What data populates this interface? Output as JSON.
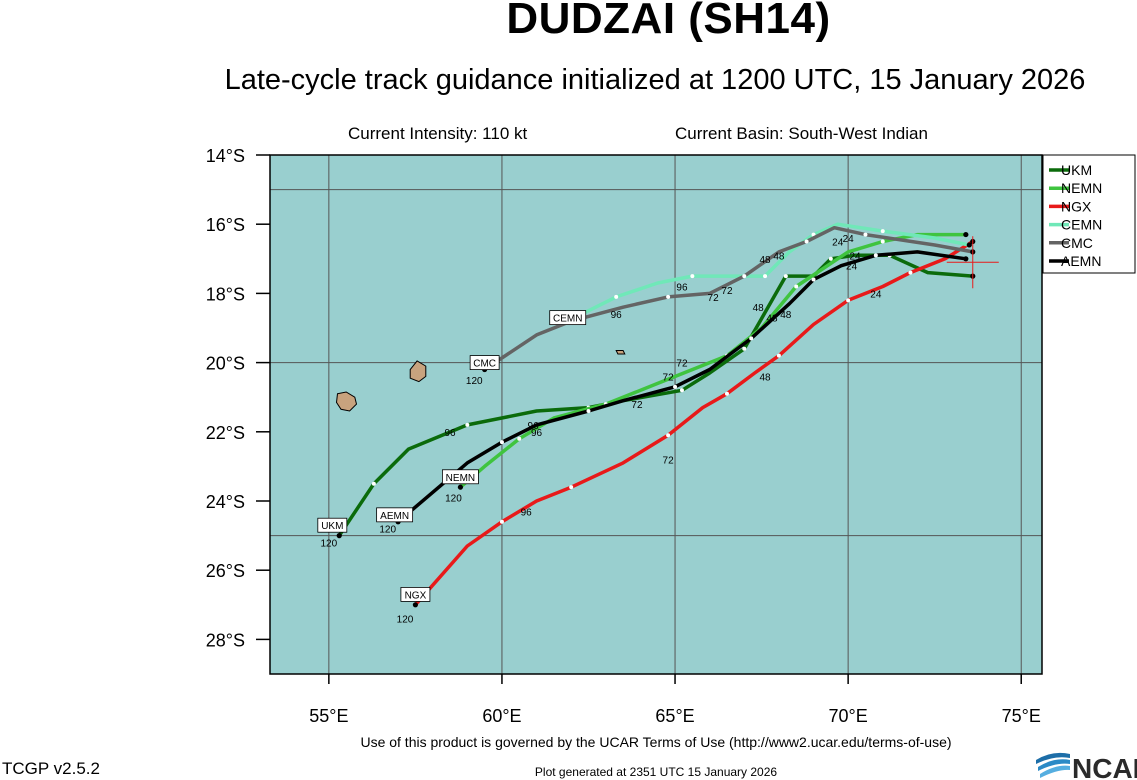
{
  "header": {
    "title": "DUDZAI (SH14)",
    "subtitle": "Late-cycle track guidance initialized at 1200 UTC, 15 January 2026",
    "intensity": "Current Intensity: 110 kt",
    "basin": "Current Basin: South-West Indian"
  },
  "footer": {
    "terms": "Use of this product is governed by the UCAR Terms of Use (http://www2.ucar.edu/terms-of-use)",
    "version": "TCGP v2.5.2",
    "generated": "Plot generated at 2351 UTC   15 January 2026",
    "logo_text": "NCAR"
  },
  "colors": {
    "ocean": "#99cfcf",
    "land": "#c8a37e",
    "UKM": "#0b6b0b",
    "NEMN": "#3fc43f",
    "NGX": "#e81a1a",
    "CEMN": "#70e8b8",
    "CMC": "#646464",
    "AEMN": "#000000"
  },
  "chart_data": {
    "type": "map-track",
    "lon_range": [
      53.3,
      75.6
    ],
    "lat_range": [
      -29,
      -14
    ],
    "x_ticks": [
      {
        "value": 55,
        "label": "55°E"
      },
      {
        "value": 60,
        "label": "60°E"
      },
      {
        "value": 65,
        "label": "65°E"
      },
      {
        "value": 70,
        "label": "70°E"
      },
      {
        "value": 75,
        "label": "75°E"
      }
    ],
    "y_ticks": [
      {
        "value": -14,
        "label": "14°S"
      },
      {
        "value": -16,
        "label": "16°S"
      },
      {
        "value": -18,
        "label": "18°S"
      },
      {
        "value": -20,
        "label": "20°S"
      },
      {
        "value": -22,
        "label": "22°S"
      },
      {
        "value": -24,
        "label": "24°S"
      },
      {
        "value": -26,
        "label": "26°S"
      },
      {
        "value": -28,
        "label": "28°S"
      }
    ],
    "grid_lon": [
      55,
      60,
      65,
      70,
      75
    ],
    "grid_lat": [
      -15,
      -20,
      -25
    ],
    "current_position": {
      "lon": 73.6,
      "lat": -17.1
    },
    "legend": [
      "UKM",
      "NEMN",
      "NGX",
      "CEMN",
      "CMC",
      "AEMN"
    ],
    "tracks": [
      {
        "name": "UKM",
        "points": [
          [
            73.6,
            -17.5
          ],
          [
            72.3,
            -17.4
          ],
          [
            71.2,
            -16.9
          ],
          [
            70.2,
            -16.9
          ],
          [
            69.5,
            -17.0
          ],
          [
            69.0,
            -17.5
          ],
          [
            68.2,
            -17.5
          ],
          [
            67.8,
            -18.2
          ],
          [
            67.0,
            -19.6
          ],
          [
            66.0,
            -20.3
          ],
          [
            65.2,
            -20.8
          ],
          [
            63.5,
            -21.1
          ],
          [
            62.5,
            -21.3
          ],
          [
            61.0,
            -21.4
          ],
          [
            59.0,
            -21.8
          ],
          [
            57.3,
            -22.5
          ],
          [
            56.3,
            -23.5
          ],
          [
            55.3,
            -25.0
          ]
        ],
        "labels": [
          {
            "text": "48",
            "lon": 68.2,
            "lat": -18.6
          },
          {
            "text": "72",
            "lon": 65.2,
            "lat": -20.0
          },
          {
            "text": "96",
            "lon": 58.5,
            "lat": -22.0
          },
          {
            "text": "120",
            "lon": 55.0,
            "lat": -25.2
          }
        ],
        "tag": {
          "text": "UKM",
          "lon": 55.1,
          "lat": -24.7
        }
      },
      {
        "name": "NEMN",
        "points": [
          [
            73.4,
            -16.3
          ],
          [
            72.0,
            -16.3
          ],
          [
            71.0,
            -16.5
          ],
          [
            70.0,
            -16.8
          ],
          [
            68.5,
            -17.8
          ],
          [
            67.5,
            -19.0
          ],
          [
            66.5,
            -19.8
          ],
          [
            64.5,
            -20.6
          ],
          [
            63.0,
            -21.2
          ],
          [
            61.5,
            -21.6
          ],
          [
            60.5,
            -22.2
          ],
          [
            59.5,
            -23.0
          ],
          [
            58.8,
            -23.6
          ]
        ],
        "labels": [
          {
            "text": "24",
            "lon": 70.2,
            "lat": -16.9
          },
          {
            "text": "48",
            "lon": 67.8,
            "lat": -18.7
          },
          {
            "text": "72",
            "lon": 64.8,
            "lat": -20.4
          },
          {
            "text": "96",
            "lon": 61.0,
            "lat": -22.0
          },
          {
            "text": "120",
            "lon": 58.6,
            "lat": -23.9
          }
        ],
        "tag": {
          "text": "NEMN",
          "lon": 58.8,
          "lat": -23.3
        }
      },
      {
        "name": "NGX",
        "points": [
          [
            73.6,
            -16.5
          ],
          [
            72.8,
            -17.0
          ],
          [
            71.8,
            -17.4
          ],
          [
            71.0,
            -17.8
          ],
          [
            70.0,
            -18.2
          ],
          [
            69.0,
            -18.9
          ],
          [
            68.0,
            -19.8
          ],
          [
            67.3,
            -20.3
          ],
          [
            66.5,
            -20.9
          ],
          [
            65.8,
            -21.3
          ],
          [
            64.8,
            -22.1
          ],
          [
            63.5,
            -22.9
          ],
          [
            62.0,
            -23.6
          ],
          [
            61.0,
            -24.0
          ],
          [
            60.0,
            -24.6
          ],
          [
            59.0,
            -25.3
          ],
          [
            57.5,
            -27.0
          ]
        ],
        "labels": [
          {
            "text": "24",
            "lon": 70.8,
            "lat": -18.0
          },
          {
            "text": "48",
            "lon": 67.6,
            "lat": -20.4
          },
          {
            "text": "72",
            "lon": 64.8,
            "lat": -22.8
          },
          {
            "text": "96",
            "lon": 60.7,
            "lat": -24.3
          },
          {
            "text": "120",
            "lon": 57.2,
            "lat": -27.4
          }
        ],
        "tag": {
          "text": "NGX",
          "lon": 57.5,
          "lat": -26.7
        }
      },
      {
        "name": "CEMN",
        "points": [
          [
            73.5,
            -16.6
          ],
          [
            72.5,
            -16.4
          ],
          [
            71.0,
            -16.2
          ],
          [
            69.7,
            -16.0
          ],
          [
            69.0,
            -16.3
          ],
          [
            68.3,
            -16.8
          ],
          [
            67.6,
            -17.5
          ],
          [
            66.5,
            -17.5
          ],
          [
            65.5,
            -17.5
          ],
          [
            64.5,
            -17.7
          ],
          [
            63.3,
            -18.1
          ],
          [
            62.3,
            -18.6
          ]
        ],
        "labels": [
          {
            "text": "24",
            "lon": 69.7,
            "lat": -16.5
          },
          {
            "text": "48",
            "lon": 67.6,
            "lat": -17.0
          },
          {
            "text": "72",
            "lon": 66.5,
            "lat": -17.9
          },
          {
            "text": "96",
            "lon": 65.2,
            "lat": -17.8
          }
        ],
        "tag": {
          "text": "CEMN",
          "lon": 61.9,
          "lat": -18.7
        }
      },
      {
        "name": "CMC",
        "points": [
          [
            73.6,
            -16.8
          ],
          [
            72.5,
            -16.6
          ],
          [
            70.5,
            -16.3
          ],
          [
            69.6,
            -16.1
          ],
          [
            68.8,
            -16.5
          ],
          [
            68.0,
            -16.8
          ],
          [
            67.0,
            -17.5
          ],
          [
            66.0,
            -18.0
          ],
          [
            64.8,
            -18.1
          ],
          [
            63.5,
            -18.4
          ],
          [
            62.0,
            -18.8
          ],
          [
            61.0,
            -19.2
          ],
          [
            59.5,
            -20.2
          ]
        ],
        "labels": [
          {
            "text": "24",
            "lon": 70.0,
            "lat": -16.4
          },
          {
            "text": "48",
            "lon": 68.0,
            "lat": -16.9
          },
          {
            "text": "72",
            "lon": 66.1,
            "lat": -18.1
          },
          {
            "text": "96",
            "lon": 63.3,
            "lat": -18.6
          },
          {
            "text": "120",
            "lon": 59.2,
            "lat": -20.5
          }
        ],
        "tag": {
          "text": "CMC",
          "lon": 59.5,
          "lat": -20.0
        }
      },
      {
        "name": "AEMN",
        "points": [
          [
            73.4,
            -17.0
          ],
          [
            72.0,
            -16.8
          ],
          [
            70.8,
            -16.9
          ],
          [
            69.8,
            -17.2
          ],
          [
            69.0,
            -17.6
          ],
          [
            68.3,
            -18.3
          ],
          [
            67.2,
            -19.3
          ],
          [
            66.0,
            -20.2
          ],
          [
            65.0,
            -20.7
          ],
          [
            63.5,
            -21.1
          ],
          [
            62.5,
            -21.4
          ],
          [
            61.0,
            -21.8
          ],
          [
            60.0,
            -22.3
          ],
          [
            59.0,
            -22.9
          ],
          [
            57.0,
            -24.6
          ]
        ],
        "labels": [
          {
            "text": "24",
            "lon": 70.1,
            "lat": -17.2
          },
          {
            "text": "48",
            "lon": 67.4,
            "lat": -18.4
          },
          {
            "text": "72",
            "lon": 63.9,
            "lat": -21.2
          },
          {
            "text": "96",
            "lon": 60.9,
            "lat": -21.8
          },
          {
            "text": "120",
            "lon": 56.7,
            "lat": -24.8
          }
        ],
        "tag": {
          "text": "AEMN",
          "lon": 56.9,
          "lat": -24.4
        }
      }
    ],
    "islands": [
      {
        "name": "reunion",
        "points": [
          [
            55.25,
            -20.9
          ],
          [
            55.5,
            -20.85
          ],
          [
            55.75,
            -21.0
          ],
          [
            55.8,
            -21.2
          ],
          [
            55.6,
            -21.4
          ],
          [
            55.35,
            -21.35
          ],
          [
            55.22,
            -21.15
          ]
        ]
      },
      {
        "name": "mauritius",
        "points": [
          [
            57.55,
            -19.95
          ],
          [
            57.8,
            -20.1
          ],
          [
            57.8,
            -20.4
          ],
          [
            57.6,
            -20.55
          ],
          [
            57.35,
            -20.45
          ],
          [
            57.35,
            -20.2
          ]
        ]
      },
      {
        "name": "rodrigues",
        "points": [
          [
            63.3,
            -19.65
          ],
          [
            63.5,
            -19.65
          ],
          [
            63.55,
            -19.75
          ],
          [
            63.35,
            -19.75
          ]
        ]
      }
    ]
  }
}
